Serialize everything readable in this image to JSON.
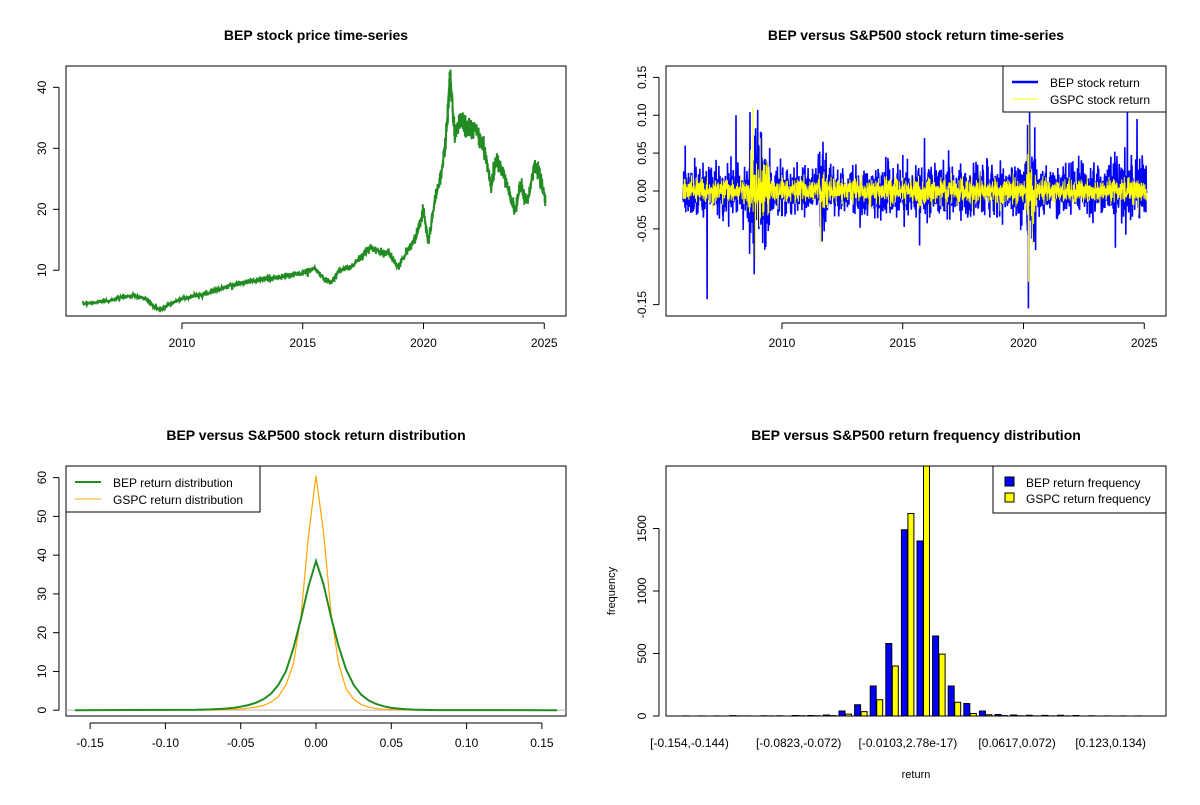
{
  "chart_data": [
    {
      "type": "line",
      "title": "BEP stock price time-series",
      "xlabel": "",
      "ylabel": "",
      "xlim": [
        2005.2,
        2025.9
      ],
      "ylim": [
        2.5,
        43.5
      ],
      "xticks": [
        2010,
        2015,
        2020,
        2025
      ],
      "yticks": [
        10,
        20,
        30,
        40
      ],
      "color": "#228B22",
      "x": [
        2005.9,
        2006.5,
        2007,
        2007.5,
        2008,
        2008.5,
        2008.8,
        2009.1,
        2009.5,
        2010,
        2010.5,
        2011,
        2011.5,
        2012,
        2012.5,
        2013,
        2013.5,
        2014,
        2014.5,
        2015,
        2015.5,
        2015.9,
        2016.2,
        2016.5,
        2017,
        2017.5,
        2017.8,
        2018.2,
        2018.6,
        2018.95,
        2019.3,
        2019.7,
        2020,
        2020.2,
        2020.5,
        2020.8,
        2021.0,
        2021.1,
        2021.3,
        2021.6,
        2021.9,
        2022.2,
        2022.5,
        2022.8,
        2023.0,
        2023.3,
        2023.6,
        2023.8,
        2024,
        2024.3,
        2024.6,
        2024.8,
        2025.05
      ],
      "y": [
        4.5,
        4.8,
        5.0,
        5.6,
        5.8,
        5.3,
        4.2,
        3.5,
        4.5,
        5.3,
        5.8,
        6.2,
        6.8,
        7.5,
        8.0,
        8.3,
        8.6,
        8.8,
        9.2,
        9.6,
        10.3,
        8.5,
        8.0,
        10,
        10.5,
        12.5,
        13.8,
        13,
        12.8,
        10.5,
        13,
        15.5,
        20,
        14.5,
        22,
        27,
        35,
        42,
        32,
        35,
        33,
        33,
        30,
        24,
        28,
        26,
        22,
        19.5,
        24,
        21,
        27,
        26,
        21
      ]
    },
    {
      "type": "line",
      "title": "BEP versus S&P500 stock return time-series",
      "xlim": [
        2005.2,
        2025.9
      ],
      "ylim": [
        -0.165,
        0.165
      ],
      "xticks": [
        2010,
        2015,
        2020,
        2025
      ],
      "yticks": [
        0.15,
        0.1,
        0.05,
        0.0,
        -0.05,
        -0.15
      ],
      "yticklabels": [
        "0.15",
        "0.10",
        "0.05",
        "0.00",
        "-0.05",
        "-0.15"
      ],
      "legend": {
        "position": "top-right",
        "entries": [
          "BEP stock return",
          "GSPC stock return"
        ]
      },
      "series": [
        {
          "name": "BEP stock return",
          "color": "#0000FF",
          "typical_abs": 0.018,
          "spikes": [
            [
              2006.0,
              0.06
            ],
            [
              2006.9,
              -0.143
            ],
            [
              2008.1,
              0.1
            ],
            [
              2008.85,
              -0.11
            ],
            [
              2009.0,
              0.107
            ],
            [
              2011.7,
              0.065
            ],
            [
              2015.7,
              -0.072
            ],
            [
              2015.9,
              0.07
            ],
            [
              2020.2,
              -0.155
            ],
            [
              2020.25,
              0.105
            ],
            [
              2020.5,
              -0.078
            ],
            [
              2023.8,
              -0.075
            ],
            [
              2024.3,
              0.105
            ],
            [
              2024.7,
              0.095
            ]
          ]
        },
        {
          "name": "GSPC stock return",
          "color": "#FFFF00",
          "typical_abs": 0.009,
          "spikes": [
            [
              2008.8,
              0.11
            ],
            [
              2008.9,
              -0.09
            ],
            [
              2009.1,
              0.07
            ],
            [
              2011.6,
              -0.068
            ],
            [
              2020.2,
              -0.12
            ],
            [
              2020.22,
              0.09
            ]
          ]
        }
      ]
    },
    {
      "type": "line",
      "title": "BEP versus S&P500 stock return distribution",
      "xlim": [
        -0.166,
        0.166
      ],
      "ylim": [
        -1.5,
        63
      ],
      "xticks": [
        -0.15,
        -0.1,
        -0.05,
        0.0,
        0.05,
        0.1,
        0.15
      ],
      "xticklabels": [
        "-0.15",
        "-0.10",
        "-0.05",
        "0.00",
        "0.05",
        "0.10",
        "0.15"
      ],
      "yticks": [
        0,
        10,
        20,
        30,
        40,
        50,
        60
      ],
      "legend": {
        "position": "top-left",
        "entries": [
          "BEP return distribution",
          "GSPC return distribution"
        ]
      },
      "x": [
        -0.16,
        -0.08,
        -0.075,
        -0.07,
        -0.065,
        -0.06,
        -0.055,
        -0.05,
        -0.045,
        -0.04,
        -0.035,
        -0.03,
        -0.025,
        -0.02,
        -0.015,
        -0.01,
        -0.005,
        0,
        0.005,
        0.01,
        0.015,
        0.02,
        0.025,
        0.03,
        0.035,
        0.04,
        0.045,
        0.05,
        0.055,
        0.06,
        0.065,
        0.07,
        0.075,
        0.08,
        0.16
      ],
      "series": [
        {
          "name": "BEP return distribution",
          "color": "#228B22",
          "values": [
            0,
            0.1,
            0.15,
            0.2,
            0.3,
            0.4,
            0.6,
            0.9,
            1.3,
            1.9,
            2.8,
            4.2,
            6.5,
            10,
            16,
            23.5,
            32,
            38.5,
            32.5,
            24,
            16.5,
            10.5,
            6.5,
            4,
            2.5,
            1.6,
            1.0,
            0.6,
            0.4,
            0.25,
            0.15,
            0.1,
            0.05,
            0.03,
            0
          ]
        },
        {
          "name": "GSPC return distribution",
          "color": "#FFA500",
          "values": [
            0,
            0.05,
            0.05,
            0.06,
            0.08,
            0.12,
            0.2,
            0.3,
            0.5,
            0.8,
            1.2,
            2,
            3.5,
            6.5,
            12,
            24,
            45,
            60.5,
            46,
            25,
            12,
            5.5,
            2.8,
            1.5,
            0.8,
            0.4,
            0.25,
            0.15,
            0.1,
            0.08,
            0.06,
            0.05,
            0.04,
            0.03,
            0
          ]
        }
      ]
    },
    {
      "type": "bar",
      "title": "BEP versus S&P500 return frequency distribution",
      "xlabel": "return",
      "ylabel": "frequency",
      "ylim": [
        0,
        2000
      ],
      "yticks": [
        0,
        500,
        1000,
        1500
      ],
      "xticklabels": [
        {
          "bin": 0,
          "label": "[-0.154,-0.144)"
        },
        {
          "bin": 7,
          "label": "[-0.0823,-0.072)"
        },
        {
          "bin": 14,
          "label": "[-0.0103,2.78e-17)"
        },
        {
          "bin": 21,
          "label": "[0.0617,0.072)"
        },
        {
          "bin": 27,
          "label": "[0.123,0.134)"
        }
      ],
      "legend": {
        "position": "top-right",
        "entries": [
          "BEP return frequency",
          "GSPC return frequency"
        ]
      },
      "series": [
        {
          "name": "BEP return frequency",
          "color": "#0000FF",
          "values": [
            1,
            1,
            1,
            3,
            1,
            2,
            2,
            4,
            4,
            8,
            40,
            90,
            240,
            580,
            1490,
            1400,
            640,
            240,
            100,
            40,
            12,
            8,
            6,
            5,
            6,
            4,
            2,
            1,
            1,
            1
          ]
        },
        {
          "name": "GSPC return frequency",
          "color": "#FFFF00",
          "values": [
            0,
            0,
            0,
            1,
            0,
            1,
            0,
            2,
            2,
            3,
            15,
            35,
            130,
            400,
            1620,
            2100,
            495,
            110,
            20,
            10,
            3,
            2,
            1,
            1,
            1,
            0,
            0,
            0,
            0,
            0
          ]
        }
      ]
    }
  ]
}
